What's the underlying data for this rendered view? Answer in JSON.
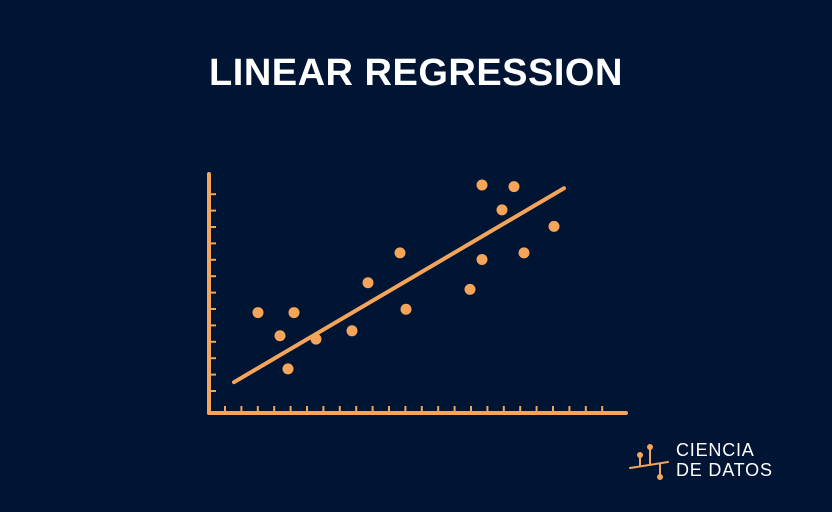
{
  "chart_data": {
    "type": "scatter",
    "title": "LINEAR REGRESSION",
    "xlabel": "",
    "ylabel": "",
    "xlim": [
      0,
      20
    ],
    "ylim": [
      0,
      14
    ],
    "grid": false,
    "series": [
      {
        "points": [
          {
            "x": 2.4,
            "y": 6.0
          },
          {
            "x": 3.5,
            "y": 4.6
          },
          {
            "x": 3.9,
            "y": 2.6
          },
          {
            "x": 4.2,
            "y": 6.0
          },
          {
            "x": 5.3,
            "y": 4.4
          },
          {
            "x": 7.1,
            "y": 4.9
          },
          {
            "x": 7.9,
            "y": 7.8
          },
          {
            "x": 9.5,
            "y": 9.6
          },
          {
            "x": 9.8,
            "y": 6.2
          },
          {
            "x": 13.0,
            "y": 7.4
          },
          {
            "x": 13.6,
            "y": 9.2
          },
          {
            "x": 13.6,
            "y": 13.7
          },
          {
            "x": 14.6,
            "y": 12.2
          },
          {
            "x": 15.2,
            "y": 13.6
          },
          {
            "x": 15.7,
            "y": 9.6
          },
          {
            "x": 17.2,
            "y": 11.2
          }
        ]
      }
    ],
    "regression_line": [
      {
        "x": 1.2,
        "y": 1.8
      },
      {
        "x": 17.7,
        "y": 13.5
      }
    ]
  },
  "brand": {
    "line1": "CIENCIA",
    "line2": "DE DATOS"
  },
  "colors": {
    "background": "#001433",
    "accent": "#f5a55a",
    "text": "#ffffff"
  }
}
